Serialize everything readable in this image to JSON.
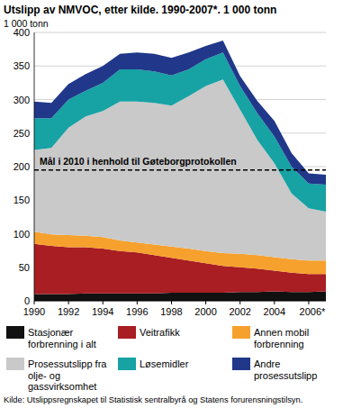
{
  "chart_data": {
    "type": "area",
    "stacked": true,
    "title": "Utslipp av NMVOC, etter kilde. 1990-2007*. 1 000 tonn",
    "y_label": "1 000 tonn",
    "source": "Kilde: Utslippsregnskapet til Statistisk sentralbyrå og Statens forurensningstilsyn.",
    "x": [
      1990,
      1991,
      1992,
      1993,
      1994,
      1995,
      1996,
      1997,
      1998,
      1999,
      2000,
      2001,
      2002,
      2003,
      2004,
      2005,
      2006,
      2007
    ],
    "xlim": [
      1990,
      2007
    ],
    "xticks": [
      1990,
      1992,
      1994,
      1996,
      1998,
      2000,
      2002,
      2004,
      {
        "value": 2006,
        "label": "2006*"
      }
    ],
    "ylim": [
      0,
      400
    ],
    "yticks": [
      0,
      50,
      100,
      150,
      200,
      250,
      300,
      350,
      400
    ],
    "grid": true,
    "target": {
      "label": "Mål i 2010 i henhold til Gøteborgprotokollen",
      "value": 195
    },
    "series": [
      {
        "name": "Stasjonær forbrenning i alt",
        "color": "#111111",
        "values": [
          10,
          10,
          10,
          11,
          11,
          11,
          11,
          11,
          12,
          12,
          12,
          12,
          13,
          13,
          14,
          13,
          13,
          14
        ]
      },
      {
        "name": "Veitrafikk",
        "color": "#a81e23",
        "values": [
          75,
          72,
          70,
          69,
          67,
          63,
          61,
          57,
          52,
          48,
          44,
          40,
          37,
          35,
          31,
          29,
          27,
          26
        ]
      },
      {
        "name": "Annen mobil forbrenning",
        "color": "#f6a12e",
        "values": [
          18,
          17,
          18,
          17,
          17,
          16,
          15,
          16,
          17,
          18,
          18,
          19,
          20,
          20,
          20,
          20,
          20,
          20
        ]
      },
      {
        "name": "Prosessutslipp fra olje- og gassvirksomhet",
        "color": "#c9c9c9",
        "values": [
          122,
          129,
          160,
          178,
          188,
          207,
          210,
          211,
          210,
          227,
          246,
          259,
          215,
          172,
          140,
          98,
          78,
          73
        ]
      },
      {
        "name": "Løsemidler",
        "color": "#17a2a4",
        "values": [
          47,
          44,
          42,
          38,
          42,
          48,
          48,
          47,
          45,
          40,
          40,
          40,
          35,
          40,
          40,
          40,
          37,
          40
        ]
      },
      {
        "name": "Andre prosessutslipp",
        "color": "#20378a",
        "values": [
          25,
          23,
          23,
          25,
          25,
          23,
          25,
          26,
          26,
          25,
          20,
          18,
          15,
          18,
          23,
          20,
          15,
          15
        ]
      }
    ]
  }
}
